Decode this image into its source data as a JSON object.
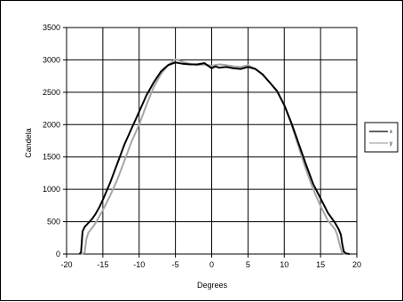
{
  "chart_data": {
    "type": "line",
    "title": "",
    "xlabel": "Degrees",
    "ylabel": "Candela",
    "xlim": [
      -20,
      20
    ],
    "ylim": [
      0,
      3500
    ],
    "x_ticks": [
      -20,
      -15,
      -10,
      -5,
      0,
      5,
      10,
      15,
      20
    ],
    "y_ticks": [
      0,
      500,
      1000,
      1500,
      2000,
      2500,
      3000,
      3500
    ],
    "grid": true,
    "legend": "right",
    "series": [
      {
        "name": "x",
        "color": "#000000",
        "x": [
          -18.2,
          -18.0,
          -17.8,
          -17.5,
          -17.0,
          -16.5,
          -16.0,
          -15.5,
          -15.0,
          -14.0,
          -13.0,
          -12.0,
          -11.0,
          -10.0,
          -9.0,
          -8.0,
          -7.0,
          -6.0,
          -5.0,
          -4.0,
          -3.0,
          -2.0,
          -1.0,
          0.0,
          0.5,
          1.0,
          2.0,
          3.0,
          4.0,
          5.0,
          6.0,
          7.0,
          8.0,
          9.0,
          10.0,
          11.0,
          12.0,
          13.0,
          14.0,
          15.0,
          16.0,
          17.0,
          17.5,
          17.8,
          18.0,
          18.2,
          18.5,
          19.0
        ],
        "y": [
          0,
          30,
          350,
          420,
          480,
          540,
          620,
          720,
          840,
          1100,
          1400,
          1700,
          1950,
          2200,
          2450,
          2650,
          2820,
          2920,
          2960,
          2940,
          2930,
          2930,
          2950,
          2870,
          2900,
          2880,
          2890,
          2870,
          2860,
          2890,
          2860,
          2780,
          2650,
          2520,
          2300,
          2020,
          1700,
          1380,
          1080,
          860,
          640,
          480,
          380,
          300,
          150,
          40,
          10,
          0
        ]
      },
      {
        "name": "y",
        "color": "#a6a6a6",
        "x": [
          -18.0,
          -17.5,
          -17.3,
          -17.0,
          -16.5,
          -16.0,
          -15.5,
          -15.0,
          -14.0,
          -13.0,
          -12.0,
          -11.0,
          -10.0,
          -9.0,
          -8.0,
          -7.0,
          -6.0,
          -5.0,
          -4.5,
          -4.0,
          -3.0,
          -2.0,
          -1.0,
          0.0,
          1.0,
          2.0,
          3.0,
          4.0,
          5.0,
          6.0,
          7.0,
          8.0,
          9.0,
          10.0,
          11.0,
          12.0,
          13.0,
          14.0,
          15.0,
          16.0,
          17.0,
          17.3,
          17.5,
          17.8,
          18.0,
          18.5
        ],
        "y": [
          0,
          20,
          220,
          330,
          400,
          480,
          580,
          680,
          900,
          1150,
          1450,
          1750,
          2000,
          2300,
          2580,
          2780,
          2920,
          3010,
          2990,
          2970,
          2940,
          2920,
          2930,
          2910,
          2930,
          2920,
          2900,
          2890,
          2920,
          2860,
          2770,
          2650,
          2510,
          2300,
          2000,
          1650,
          1300,
          1000,
          740,
          520,
          380,
          300,
          200,
          80,
          20,
          0
        ]
      }
    ]
  }
}
